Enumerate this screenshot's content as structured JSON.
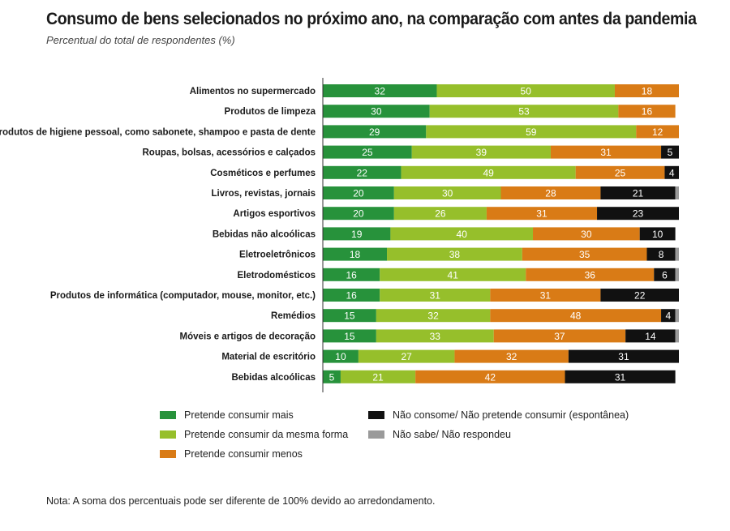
{
  "chart_data": {
    "type": "bar",
    "orientation": "horizontal",
    "stacked": true,
    "title": "Consumo de bens selecionados no próximo ano, na comparação com antes da pandemia",
    "subtitle": "Percentual do total de respondentes (%)",
    "xlim": [
      0,
      100
    ],
    "categories": [
      "Alimentos no supermercado",
      "Produtos de limpeza",
      "Produtos de higiene pessoal, como sabonete, shampoo e pasta de dente",
      "Roupas, bolsas, acessórios e calçados",
      "Cosméticos e perfumes",
      "Livros, revistas, jornais",
      "Artigos esportivos",
      "Bebidas não alcoólicas",
      "Eletroeletrônicos",
      "Eletrodomésticos",
      "Produtos de informática (computador, mouse, monitor, etc.)",
      "Remédios",
      "Móveis e artigos de decoração",
      "Material de escritório",
      "Bebidas alcoólicas"
    ],
    "series": [
      {
        "name": "Pretende consumir mais",
        "color": "#27923b",
        "values": [
          32,
          30,
          29,
          25,
          22,
          20,
          20,
          19,
          18,
          16,
          16,
          15,
          15,
          10,
          5
        ]
      },
      {
        "name": "Pretende consumir da mesma forma",
        "color": "#96bf2b",
        "values": [
          50,
          53,
          59,
          39,
          49,
          30,
          26,
          40,
          38,
          41,
          31,
          32,
          33,
          27,
          21
        ]
      },
      {
        "name": "Pretende consumir menos",
        "color": "#d97b16",
        "values": [
          18,
          16,
          12,
          31,
          25,
          28,
          31,
          30,
          35,
          36,
          31,
          48,
          37,
          32,
          42
        ]
      },
      {
        "name": "Não consome/ Não pretende consumir (espontânea)",
        "color": "#111111",
        "values": [
          0,
          0,
          0,
          5,
          4,
          21,
          23,
          10,
          8,
          6,
          22,
          4,
          14,
          31,
          31
        ]
      },
      {
        "name": "Não sabe/ Não respondeu",
        "color": "#9a9a9a",
        "values": [
          0,
          0,
          0,
          1,
          0,
          1,
          1,
          0,
          1,
          1,
          0,
          1,
          1,
          1,
          0
        ]
      }
    ],
    "legend_position": "bottom",
    "grid": false
  },
  "legend": {
    "items": [
      {
        "label": "Pretende consumir mais",
        "color": "#27923b"
      },
      {
        "label": "Pretende consumir da mesma forma",
        "color": "#96bf2b"
      },
      {
        "label": "Pretende consumir menos",
        "color": "#d97b16"
      },
      {
        "label": "Não consome/ Não pretende consumir (espontânea)",
        "color": "#111111"
      },
      {
        "label": "Não sabe/ Não respondeu",
        "color": "#9a9a9a"
      }
    ]
  },
  "note": "Nota: A soma dos percentuais pode ser diferente de 100% devido ao arredondamento."
}
